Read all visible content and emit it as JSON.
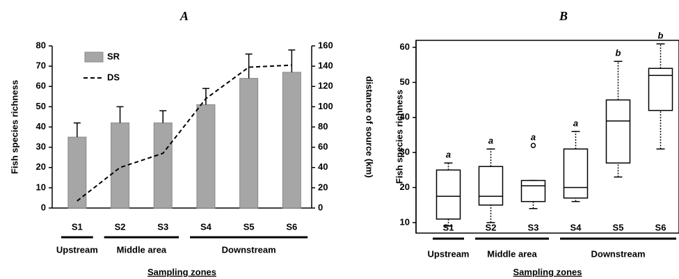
{
  "chart_data": [
    {
      "type": "bar",
      "title": "A",
      "categories": [
        "S1",
        "S2",
        "S3",
        "S4",
        "S5",
        "S6"
      ],
      "zones": [
        "Upstream",
        "Middle area",
        "Downstream"
      ],
      "xlabel": "Sampling zones",
      "ylabel": "Fish species richness",
      "y2label": "distance of source (km)",
      "ylim": [
        0,
        80
      ],
      "yticks": [
        0,
        10,
        20,
        30,
        40,
        50,
        60,
        70,
        80
      ],
      "y2lim": [
        0,
        160
      ],
      "y2ticks": [
        0,
        20,
        40,
        60,
        80,
        100,
        120,
        140,
        160
      ],
      "legend": "upper left",
      "series": [
        {
          "name": "SR",
          "type": "bar",
          "color": "#a6a6a6",
          "values": [
            35,
            42,
            42,
            51,
            64,
            67
          ],
          "errors": [
            7,
            8,
            6,
            8,
            12,
            11
          ]
        },
        {
          "name": "DS",
          "type": "line",
          "axis": "y2",
          "color": "#000000",
          "dashed": true,
          "values": [
            7,
            40,
            54,
            108,
            139,
            141
          ]
        }
      ]
    },
    {
      "type": "box",
      "title": "B",
      "categories": [
        "S1",
        "S2",
        "S3",
        "S4",
        "S5",
        "S6"
      ],
      "zones": [
        "Upstream",
        "Middle area",
        "Downstream"
      ],
      "xlabel": "Sampling zones",
      "ylabel": "Fish species richness",
      "ylim": [
        7,
        62
      ],
      "yticks": [
        10,
        20,
        30,
        40,
        50,
        60
      ],
      "boxes": [
        {
          "min": 9,
          "q1": 11,
          "median": 17.5,
          "q3": 25,
          "max": 27,
          "outliers": []
        },
        {
          "min": 10,
          "q1": 15,
          "median": 17.5,
          "q3": 26,
          "max": 31,
          "outliers": []
        },
        {
          "min": 14,
          "q1": 16,
          "median": 20.5,
          "q3": 22,
          "max": 22,
          "outliers": [
            32
          ]
        },
        {
          "min": 16,
          "q1": 17,
          "median": 20,
          "q3": 31,
          "max": 36,
          "outliers": []
        },
        {
          "min": 23,
          "q1": 27,
          "median": 39,
          "q3": 45,
          "max": 56,
          "outliers": []
        },
        {
          "min": 31,
          "q1": 42,
          "median": 52,
          "q3": 54,
          "max": 61,
          "outliers": []
        }
      ],
      "annotations": [
        "a",
        "a",
        "a",
        "a",
        "b",
        "b"
      ]
    }
  ]
}
